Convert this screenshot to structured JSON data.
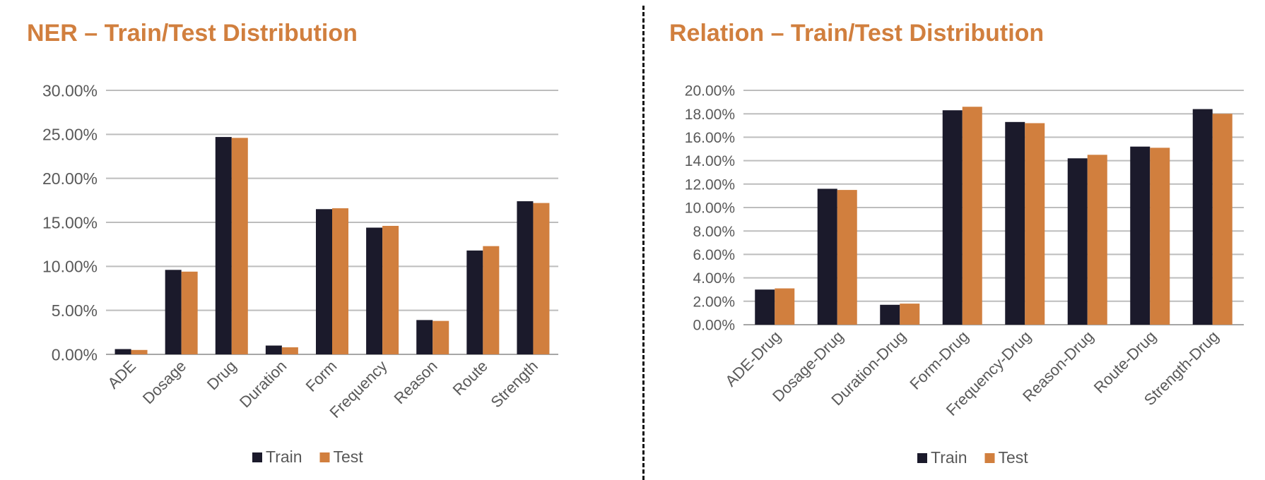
{
  "colors": {
    "title": "#D17F3E",
    "train": "#1B1A2B",
    "test": "#D17F3E",
    "grid": "#BDBDBD",
    "axis_text": "#595959"
  },
  "chart_data": [
    {
      "type": "bar",
      "title": "NER – Train/Test Distribution",
      "categories": [
        "ADE",
        "Dosage",
        "Drug",
        "Duration",
        "Form",
        "Frequency",
        "Reason",
        "Route",
        "Strength"
      ],
      "series": [
        {
          "name": "Train",
          "values": [
            0.6,
            9.6,
            24.7,
            1.0,
            16.5,
            14.4,
            3.9,
            11.8,
            17.4
          ]
        },
        {
          "name": "Test",
          "values": [
            0.5,
            9.4,
            24.6,
            0.8,
            16.6,
            14.6,
            3.8,
            12.3,
            17.2
          ]
        }
      ],
      "y_ticks": [
        "0.00%",
        "5.00%",
        "10.00%",
        "15.00%",
        "20.00%",
        "25.00%",
        "30.00%"
      ],
      "ylim": [
        0,
        30
      ],
      "grid": true,
      "legend": "bottom"
    },
    {
      "type": "bar",
      "title": "Relation – Train/Test Distribution",
      "categories": [
        "ADE-Drug",
        "Dosage-Drug",
        "Duration-Drug",
        "Form-Drug",
        "Frequency-Drug",
        "Reason-Drug",
        "Route-Drug",
        "Strength-Drug"
      ],
      "series": [
        {
          "name": "Train",
          "values": [
            3.0,
            11.6,
            1.7,
            18.3,
            17.3,
            14.2,
            15.2,
            18.4
          ]
        },
        {
          "name": "Test",
          "values": [
            3.1,
            11.5,
            1.8,
            18.6,
            17.2,
            14.5,
            15.1,
            18.0
          ]
        }
      ],
      "y_ticks": [
        "0.00%",
        "2.00%",
        "4.00%",
        "6.00%",
        "8.00%",
        "10.00%",
        "12.00%",
        "14.00%",
        "16.00%",
        "18.00%",
        "20.00%"
      ],
      "ylim": [
        0,
        20
      ],
      "grid": true,
      "legend": "bottom"
    }
  ]
}
